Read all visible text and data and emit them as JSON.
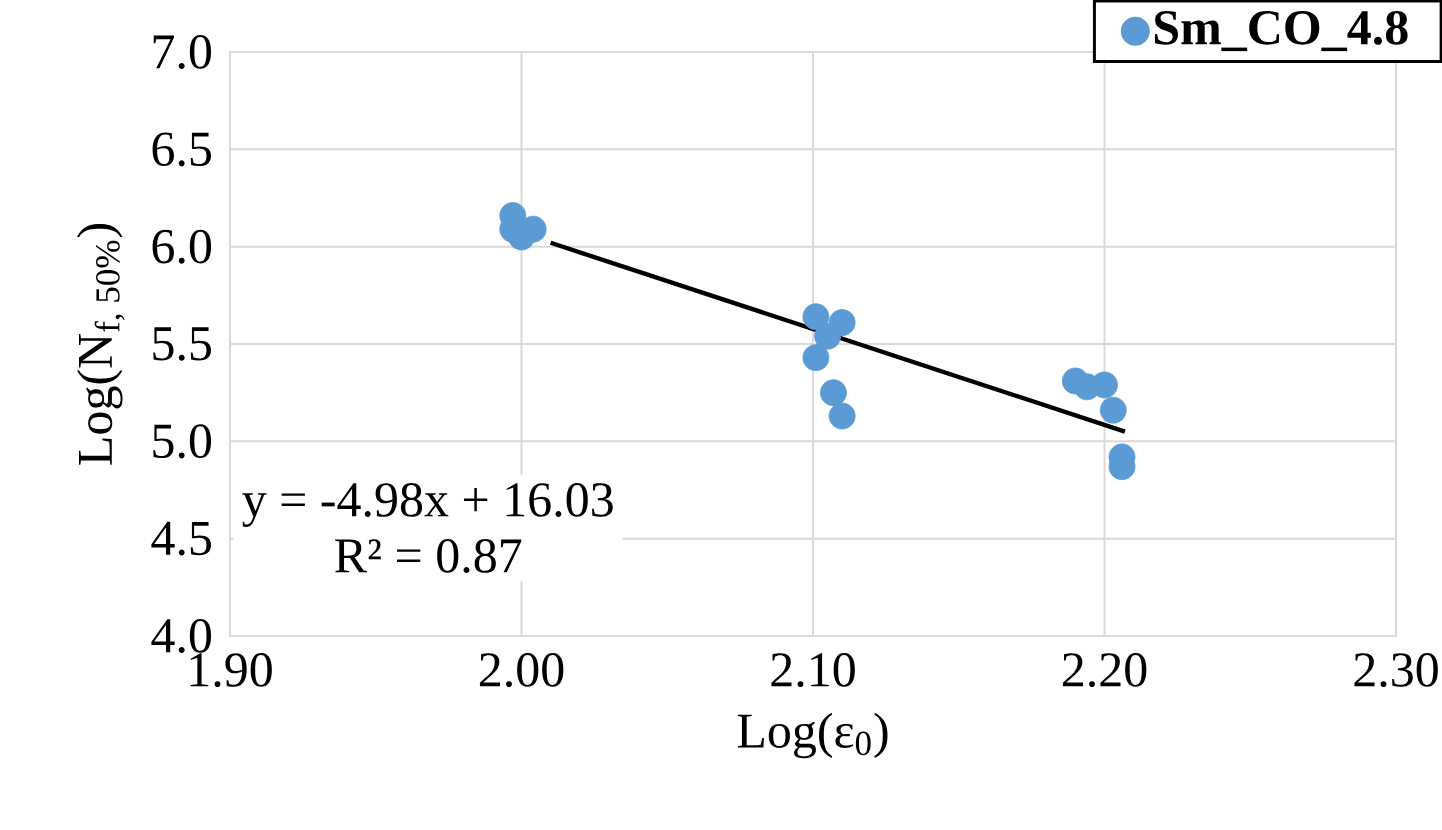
{
  "chart_data": {
    "type": "scatter",
    "xlabel": "Log(ε$_{0}$)",
    "ylabel": "Log(N$_{f, 50%}$)",
    "xlim": [
      1.9,
      2.3
    ],
    "xticks": [
      {
        "value": 1.9,
        "label": "1.90"
      },
      {
        "value": 2.0,
        "label": "2.00"
      },
      {
        "value": 2.1,
        "label": "2.10"
      },
      {
        "value": 2.2,
        "label": "2.20"
      },
      {
        "value": 2.3,
        "label": "2.30"
      }
    ],
    "ylim": [
      4,
      7
    ],
    "yticks": [
      {
        "value": 4,
        "label": "4.0"
      },
      {
        "value": 4.5,
        "label": "4.5"
      },
      {
        "value": 5,
        "label": "5.0"
      },
      {
        "value": 5.5,
        "label": "5.5"
      },
      {
        "value": 6,
        "label": "6.0"
      },
      {
        "value": 6.5,
        "label": "6.5"
      },
      {
        "value": 7,
        "label": "7.0"
      }
    ],
    "grid": true,
    "legend": "top right",
    "annotations": [
      "y = -4.98x + 16.03",
      "R² = 0.87"
    ],
    "series": [
      {
        "name": "Sm_CO_4.8",
        "color": "#5b9bd5",
        "marker": "circle",
        "x": [
          1.997,
          2.004,
          1.997,
          2.0,
          2.101,
          2.11,
          2.105,
          2.101,
          2.107,
          2.11,
          2.19,
          2.194,
          2.2,
          2.203,
          2.206,
          2.206
        ],
        "values": [
          6.16,
          6.09,
          6.09,
          6.05,
          5.64,
          5.61,
          5.54,
          5.43,
          5.25,
          5.13,
          5.31,
          5.28,
          5.29,
          5.16,
          4.92,
          4.87
        ]
      },
      {
        "type": "line",
        "color": "#000000",
        "marker": "none",
        "x": [
          2.01,
          2.207
        ],
        "values": [
          6.02,
          5.05
        ]
      }
    ]
  }
}
